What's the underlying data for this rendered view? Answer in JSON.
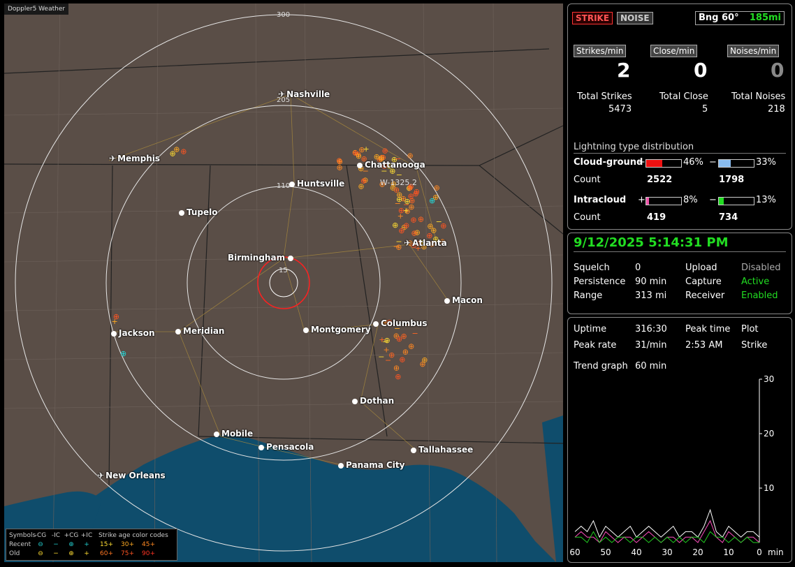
{
  "app_title": "Doppler5 Weather",
  "map": {
    "ring_labels": {
      "r300": "300",
      "r205": "205",
      "r110": "110",
      "r15": "15"
    },
    "range_label": "W-1325.2",
    "cities": [
      {
        "name": "Nashville",
        "type": "airport"
      },
      {
        "name": "Memphis",
        "type": "airport"
      },
      {
        "name": "Chattanooga",
        "type": "city"
      },
      {
        "name": "Huntsville",
        "type": "city"
      },
      {
        "name": "Tupelo",
        "type": "city"
      },
      {
        "name": "Birmingham",
        "type": "city"
      },
      {
        "name": "Atlanta",
        "type": "airport"
      },
      {
        "name": "Macon",
        "type": "city"
      },
      {
        "name": "Jackson",
        "type": "city"
      },
      {
        "name": "Meridian",
        "type": "city"
      },
      {
        "name": "Montgomery",
        "type": "city"
      },
      {
        "name": "Columbus",
        "type": "city"
      },
      {
        "name": "Dothan",
        "type": "city"
      },
      {
        "name": "Mobile",
        "type": "city"
      },
      {
        "name": "Pensacola",
        "type": "city"
      },
      {
        "name": "Tallahassee",
        "type": "city"
      },
      {
        "name": "Panama City",
        "type": "city"
      },
      {
        "name": "New Orleans",
        "type": "airport"
      }
    ]
  },
  "legend": {
    "symbols_label": "Symbols",
    "col_cg_minus": "-CG",
    "col_ic_minus": "-IC",
    "col_cg_plus": "+CG",
    "col_ic_plus": "+IC",
    "age_title": "Strike age color codes",
    "recent": "Recent",
    "old": "Old",
    "recent_ages": [
      "15+",
      "30+",
      "45+"
    ],
    "old_ages": [
      "60+",
      "75+",
      "90+"
    ]
  },
  "top": {
    "strike_btn": "STRIKE",
    "noise_btn": "NOISE",
    "bearing": "Bng 60°",
    "distance": "185mi"
  },
  "rates": {
    "strikes_label": "Strikes/min",
    "close_label": "Close/min",
    "noises_label": "Noises/min",
    "strikes": "2",
    "close": "0",
    "noises": "0"
  },
  "totals": {
    "strikes_label": "Total Strikes",
    "close_label": "Total Close",
    "noises_label": "Total Noises",
    "strikes": "5473",
    "close": "5",
    "noises": "218"
  },
  "distribution": {
    "title": "Lightning type distribution",
    "cg_label": "Cloud-ground",
    "cg_plus_pct": "46%",
    "cg_minus_pct": "33%",
    "cg_plus_frac": 0.46,
    "cg_minus_frac": 0.33,
    "count_label": "Count",
    "cg_plus_count": "2522",
    "cg_minus_count": "1798",
    "ic_label": "Intracloud",
    "ic_plus_pct": "8%",
    "ic_minus_pct": "13%",
    "ic_plus_frac": 0.08,
    "ic_minus_frac": 0.13,
    "ic_plus_count": "419",
    "ic_minus_count": "734",
    "plus_sign": "+",
    "minus_sign": "−"
  },
  "status": {
    "datetime": "9/12/2025 5:14:31 PM",
    "squelch_label": "Squelch",
    "squelch": "0",
    "upload_label": "Upload",
    "upload": "Disabled",
    "persistence_label": "Persistence",
    "persistence": "90 min",
    "capture_label": "Capture",
    "capture": "Active",
    "range_label": "Range",
    "range": "313 mi",
    "receiver_label": "Receiver",
    "receiver": "Enabled"
  },
  "stats": {
    "uptime_label": "Uptime",
    "uptime": "316:30",
    "peak_time_label": "Peak time",
    "plot_label": "Plot",
    "peak_rate_label": "Peak rate",
    "peak_rate": "31/min",
    "peak_time": "2:53 AM",
    "plot": "Strike",
    "trend_label": "Trend graph",
    "trend": "60 min"
  },
  "chart_data": {
    "type": "line",
    "x_ticks": [
      "60",
      "50",
      "40",
      "30",
      "20",
      "10",
      "0"
    ],
    "x_unit": "min",
    "y_ticks": [
      "30",
      "20",
      "10"
    ],
    "ylim": [
      0,
      30
    ],
    "x": [
      60,
      58,
      56,
      54,
      52,
      50,
      48,
      46,
      44,
      42,
      40,
      38,
      36,
      34,
      32,
      30,
      28,
      26,
      24,
      22,
      20,
      18,
      16,
      14,
      12,
      10,
      8,
      6,
      4,
      2,
      0
    ],
    "series": [
      {
        "color": "#ffffff",
        "values": [
          2,
          3,
          2,
          4,
          1,
          3,
          2,
          1,
          2,
          3,
          1,
          2,
          3,
          2,
          1,
          2,
          3,
          1,
          2,
          2,
          1,
          3,
          6,
          2,
          1,
          3,
          2,
          1,
          2,
          2,
          1
        ]
      },
      {
        "color": "#ff4fbf",
        "values": [
          1,
          2,
          1,
          1,
          0,
          2,
          1,
          0,
          1,
          1,
          0,
          1,
          2,
          1,
          0,
          1,
          1,
          0,
          1,
          1,
          0,
          2,
          4,
          1,
          0,
          2,
          1,
          0,
          1,
          1,
          0
        ]
      },
      {
        "color": "#22cc22",
        "values": [
          1,
          1,
          0,
          2,
          0,
          1,
          0,
          1,
          1,
          0,
          1,
          1,
          0,
          1,
          0,
          1,
          0,
          1,
          0,
          1,
          1,
          0,
          2,
          1,
          1,
          0,
          1,
          0,
          1,
          0,
          0
        ]
      }
    ]
  }
}
